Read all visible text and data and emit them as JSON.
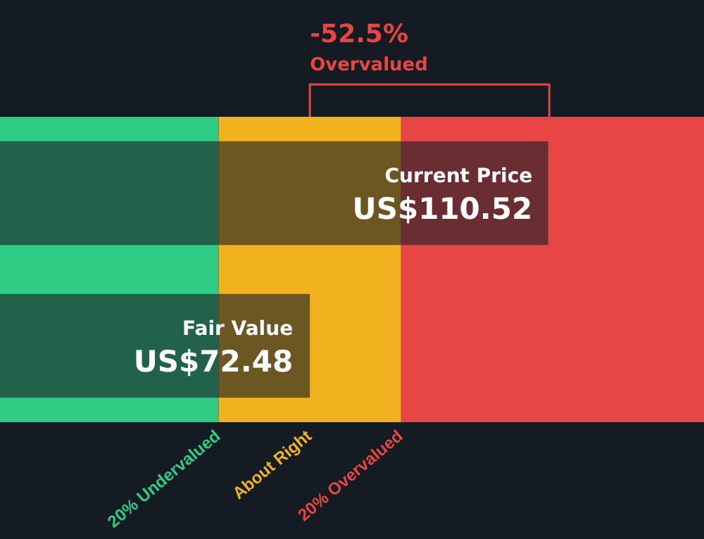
{
  "chart_data": {
    "type": "bar",
    "orientation": "horizontal",
    "categories": [
      "Current Price",
      "Fair Value"
    ],
    "values": [
      110.52,
      72.48
    ],
    "color": "#1b1f26",
    "value_labels": [
      "US$110.52",
      "US$72.48"
    ],
    "xlim": [
      23.25,
      135.1
    ],
    "tick_labels": false,
    "bands": [
      {
        "axis": "x",
        "from": 23.25,
        "to": 57.98,
        "label": "20% Undervalued",
        "color": "#2ecc85"
      },
      {
        "axis": "x",
        "from": 57.98,
        "to": 86.98,
        "label": "About Right",
        "color": "#f0b31f"
      },
      {
        "axis": "x",
        "from": 86.98,
        "to": 135.1,
        "label": "20% Overvalued",
        "color": "#e84545"
      }
    ],
    "annotations": [
      "-52.5%",
      "Overvalued"
    ]
  }
}
